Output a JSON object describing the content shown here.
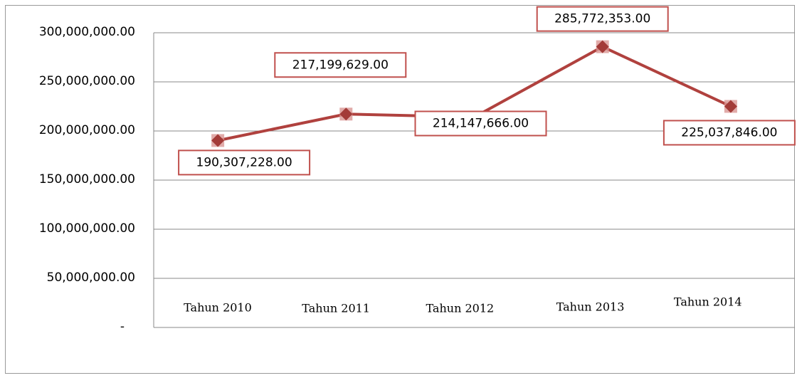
{
  "chart_data": {
    "type": "line",
    "categories": [
      "Tahun 2010",
      "Tahun 2011",
      "Tahun 2012",
      "Tahun 2013",
      "Tahun 2014"
    ],
    "series": [
      {
        "color": "#b0413e",
        "values": [
          190307228,
          217199629,
          214147666,
          285772353,
          225037846
        ],
        "value_labels": [
          "190,307,228.00",
          "217,199,629.00",
          "214,147,666.00",
          "285,772,353.00",
          "225,037,846.00"
        ]
      }
    ],
    "ylim": [
      0,
      300000000
    ],
    "yticks": [
      {
        "value": 0,
        "label": "-"
      },
      {
        "value": 50000000,
        "label": "50,000,000.00"
      },
      {
        "value": 100000000,
        "label": "100,000,000.00"
      },
      {
        "value": 150000000,
        "label": "150,000,000.00"
      },
      {
        "value": 200000000,
        "label": "200,000,000.00"
      },
      {
        "value": 250000000,
        "label": "250,000,000.00"
      },
      {
        "value": 300000000,
        "label": "300,000,000.00"
      }
    ],
    "grid": true
  }
}
